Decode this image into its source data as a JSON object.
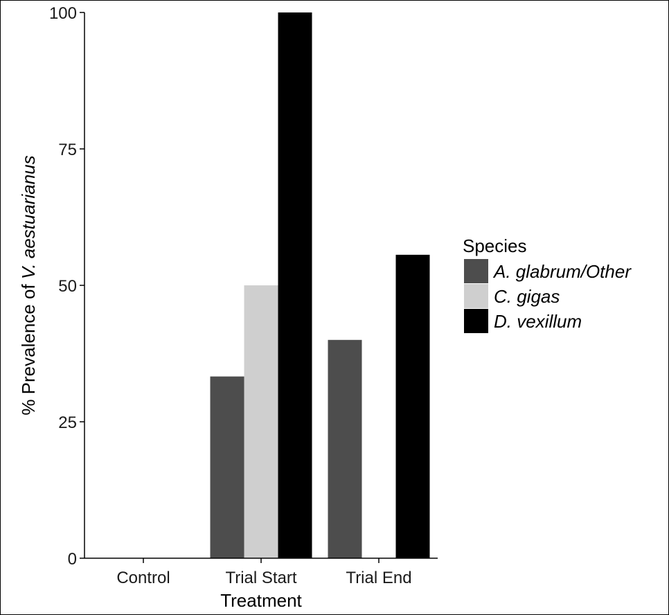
{
  "chart_data": {
    "type": "bar",
    "categories": [
      "Control",
      "Trial Start",
      "Trial End"
    ],
    "series": [
      {
        "name": "A. glabrum/Other",
        "color": "#4d4d4d",
        "values": [
          0,
          33.3,
          40
        ]
      },
      {
        "name": "C. gigas",
        "color": "#cfcfcf",
        "values": [
          0,
          50,
          0
        ]
      },
      {
        "name": "D. vexillum",
        "color": "#000000",
        "values": [
          0,
          100,
          55.6
        ]
      }
    ],
    "xlabel": "Treatment",
    "ylabel_prefix": "% Prevalence of ",
    "ylabel_species": "V. aestuarianus",
    "ylim": [
      0,
      100
    ],
    "yticks": [
      0,
      25,
      50,
      75,
      100
    ],
    "grid": false,
    "legend": {
      "title": "Species",
      "position": "right"
    }
  }
}
